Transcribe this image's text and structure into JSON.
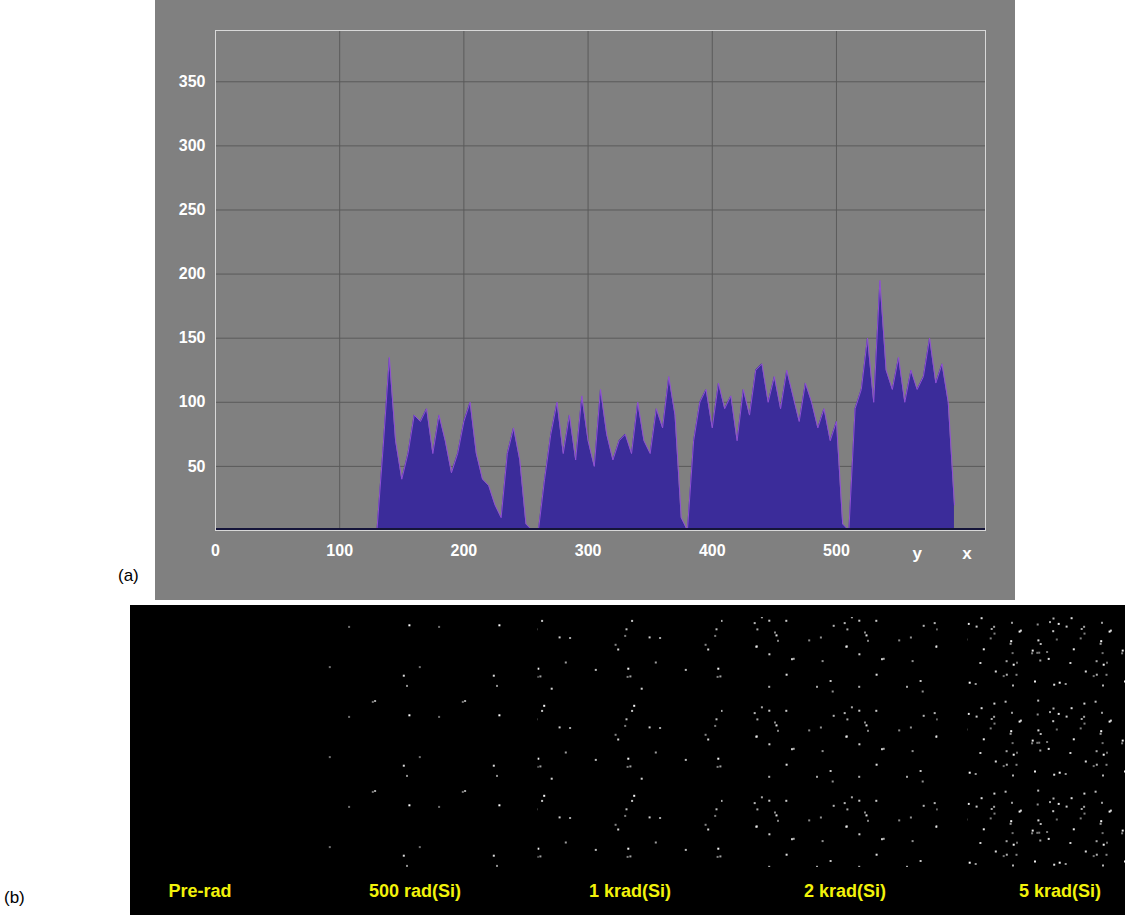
{
  "chart_data": {
    "type": "area",
    "panel_label": "(a)",
    "x": [
      0,
      5,
      10,
      15,
      20,
      25,
      30,
      35,
      40,
      45,
      50,
      55,
      60,
      65,
      70,
      75,
      80,
      85,
      90,
      95,
      100,
      105,
      110,
      115,
      120,
      125,
      130,
      135,
      140,
      145,
      150,
      155,
      160,
      165,
      170,
      175,
      180,
      185,
      190,
      195,
      200,
      205,
      210,
      215,
      220,
      225,
      230,
      235,
      240,
      245,
      250,
      255,
      260,
      265,
      270,
      275,
      280,
      285,
      290,
      295,
      300,
      305,
      310,
      315,
      320,
      325,
      330,
      335,
      340,
      345,
      350,
      355,
      360,
      365,
      370,
      375,
      380,
      385,
      390,
      395,
      400,
      405,
      410,
      415,
      420,
      425,
      430,
      435,
      440,
      445,
      450,
      455,
      460,
      465,
      470,
      475,
      480,
      485,
      490,
      495,
      500,
      505,
      510,
      515,
      520,
      525,
      530,
      535,
      540,
      545,
      550,
      555,
      560,
      565,
      570,
      575,
      580,
      585,
      590,
      595
    ],
    "values": [
      0,
      0,
      0,
      0,
      0,
      0,
      0,
      0,
      0,
      0,
      0,
      0,
      0,
      0,
      0,
      0,
      0,
      0,
      0,
      0,
      0,
      0,
      0,
      0,
      0,
      0,
      0,
      65,
      135,
      70,
      40,
      60,
      90,
      85,
      95,
      60,
      90,
      70,
      45,
      60,
      85,
      100,
      60,
      40,
      35,
      20,
      10,
      60,
      80,
      55,
      5,
      0,
      0,
      40,
      75,
      100,
      60,
      90,
      55,
      105,
      70,
      50,
      110,
      75,
      55,
      70,
      75,
      60,
      100,
      70,
      60,
      95,
      80,
      120,
      90,
      10,
      0,
      70,
      100,
      110,
      80,
      115,
      95,
      105,
      70,
      110,
      90,
      125,
      130,
      100,
      120,
      95,
      125,
      105,
      85,
      115,
      100,
      80,
      95,
      70,
      85,
      5,
      0,
      95,
      110,
      150,
      100,
      195,
      125,
      110,
      135,
      100,
      125,
      110,
      120,
      150,
      115,
      130,
      100,
      20
    ],
    "color": "#3b2c9a",
    "xlim": [
      0,
      620
    ],
    "xticks": [
      0,
      100,
      200,
      300,
      400,
      500
    ],
    "ylim": [
      0,
      390
    ],
    "yticks": [
      50,
      100,
      150,
      200,
      250,
      300,
      350
    ],
    "grid": true,
    "annotations": [
      {
        "text": "y",
        "x": 565
      },
      {
        "text": "x",
        "x": 605
      }
    ]
  },
  "image_strip": {
    "panel_label": "(b)",
    "frames": [
      {
        "label": "Pre-rad"
      },
      {
        "label": "500 rad(Si)"
      },
      {
        "label": "1 krad(Si)"
      },
      {
        "label": "2 krad(Si)"
      },
      {
        "label": "5 krad(Si)"
      }
    ]
  }
}
